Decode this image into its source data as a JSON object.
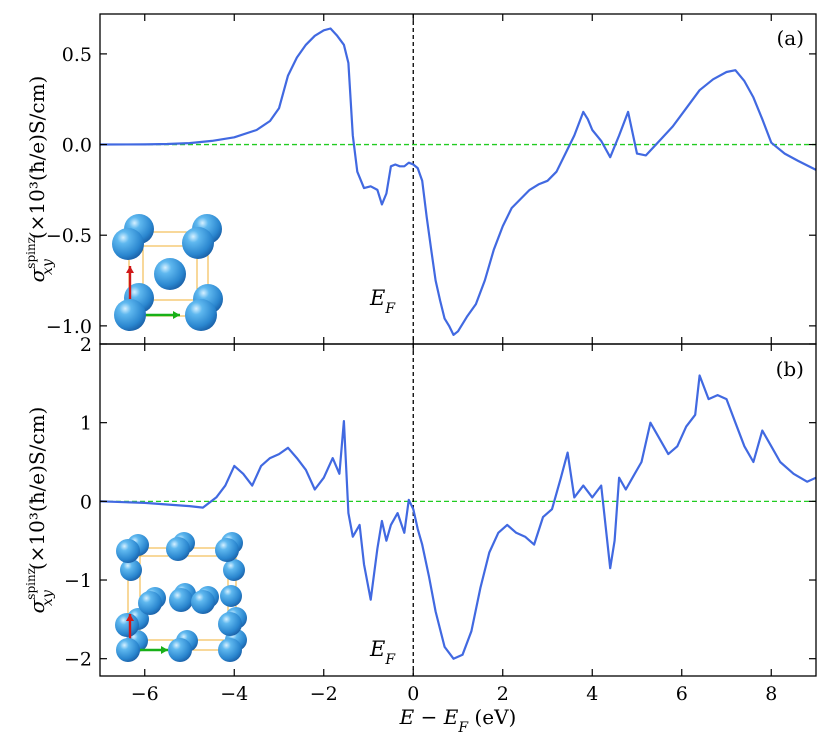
{
  "colors": {
    "curve": "#4169e1",
    "zero_line": "#22cc22",
    "fermi_line": "#000000",
    "atom": "#3a9fe0",
    "atom_highlight": "#bfe6ff",
    "cell_edge": "#f2b134",
    "arrow_up": "#d01818",
    "arrow_right": "#18b018"
  },
  "xlabel": "E − E_F (eV)",
  "xlabel_parts": {
    "a": "E",
    "minus": " − ",
    "b": "E",
    "sub": "F",
    "unit": " (eV)"
  },
  "ylabel_parts": {
    "sigma": "σ",
    "sup": "spinz",
    "sub": "xy",
    "unit": "(×10³(ħ/e)S/cm)"
  },
  "ef_label": {
    "main": "E",
    "sub": "F"
  },
  "chart_data": [
    {
      "type": "line",
      "panel": "(a)",
      "xlim": [
        -7,
        9
      ],
      "ylim": [
        -1.1,
        0.72
      ],
      "xticks": [
        -6,
        -4,
        -2,
        0,
        2,
        4,
        6,
        8
      ],
      "xtick_labels": [
        "−6",
        "−4",
        "−2",
        "0",
        "2",
        "4",
        "6",
        "8"
      ],
      "yticks": [
        0.5,
        0.0,
        -0.5,
        -1.0
      ],
      "ytick_labels": [
        "0.5",
        "0.0",
        "−0.5",
        "−1.0"
      ],
      "fermi_level": 0,
      "reference_line": 0,
      "inset": "bcc-cell",
      "x": [
        -7.0,
        -6.0,
        -5.5,
        -5.0,
        -4.5,
        -4.0,
        -3.5,
        -3.2,
        -3.0,
        -2.8,
        -2.6,
        -2.4,
        -2.2,
        -2.0,
        -1.85,
        -1.7,
        -1.55,
        -1.45,
        -1.35,
        -1.25,
        -1.1,
        -0.95,
        -0.8,
        -0.7,
        -0.6,
        -0.5,
        -0.4,
        -0.3,
        -0.2,
        -0.1,
        0.0,
        0.1,
        0.2,
        0.3,
        0.4,
        0.5,
        0.6,
        0.7,
        0.8,
        0.9,
        1.0,
        1.2,
        1.4,
        1.6,
        1.8,
        2.0,
        2.2,
        2.4,
        2.6,
        2.8,
        3.0,
        3.2,
        3.4,
        3.6,
        3.8,
        3.9,
        4.0,
        4.2,
        4.4,
        4.6,
        4.8,
        5.0,
        5.2,
        5.5,
        5.8,
        6.1,
        6.4,
        6.7,
        7.0,
        7.2,
        7.4,
        7.6,
        7.8,
        8.0,
        8.3,
        8.6,
        9.0
      ],
      "y": [
        0.0,
        0.001,
        0.003,
        0.008,
        0.02,
        0.04,
        0.08,
        0.13,
        0.2,
        0.38,
        0.48,
        0.55,
        0.6,
        0.63,
        0.64,
        0.6,
        0.55,
        0.45,
        0.05,
        -0.15,
        -0.24,
        -0.23,
        -0.25,
        -0.33,
        -0.27,
        -0.12,
        -0.11,
        -0.12,
        -0.12,
        -0.1,
        -0.11,
        -0.13,
        -0.2,
        -0.4,
        -0.58,
        -0.75,
        -0.86,
        -0.96,
        -1.0,
        -1.05,
        -1.03,
        -0.95,
        -0.88,
        -0.75,
        -0.58,
        -0.45,
        -0.35,
        -0.3,
        -0.25,
        -0.22,
        -0.2,
        -0.15,
        -0.05,
        0.05,
        0.18,
        0.14,
        0.08,
        0.02,
        -0.07,
        0.05,
        0.18,
        -0.05,
        -0.06,
        0.02,
        0.1,
        0.2,
        0.3,
        0.36,
        0.4,
        0.41,
        0.35,
        0.26,
        0.14,
        0.01,
        -0.05,
        -0.09,
        -0.14
      ]
    },
    {
      "type": "line",
      "panel": "(b)",
      "xlim": [
        -7,
        9
      ],
      "ylim": [
        -2.22,
        2.0
      ],
      "xticks": [
        -6,
        -4,
        -2,
        0,
        2,
        4,
        6,
        8
      ],
      "xtick_labels": [
        "−6",
        "−4",
        "−2",
        "0",
        "2",
        "4",
        "6",
        "8"
      ],
      "yticks": [
        2,
        1,
        0,
        -1,
        -2
      ],
      "ytick_labels": [
        "2",
        "1",
        "0",
        "−1",
        "−2"
      ],
      "fermi_level": 0,
      "reference_line": 0,
      "inset": "tetragonal-cell",
      "x": [
        -7.0,
        -6.0,
        -5.5,
        -5.0,
        -4.7,
        -4.4,
        -4.2,
        -4.0,
        -3.8,
        -3.6,
        -3.4,
        -3.2,
        -3.0,
        -2.8,
        -2.6,
        -2.4,
        -2.2,
        -2.0,
        -1.8,
        -1.65,
        -1.55,
        -1.45,
        -1.35,
        -1.2,
        -1.1,
        -0.95,
        -0.8,
        -0.7,
        -0.6,
        -0.5,
        -0.35,
        -0.2,
        -0.1,
        0.0,
        0.1,
        0.2,
        0.35,
        0.5,
        0.7,
        0.9,
        1.1,
        1.3,
        1.5,
        1.7,
        1.9,
        2.1,
        2.3,
        2.5,
        2.7,
        2.9,
        3.1,
        3.3,
        3.45,
        3.6,
        3.8,
        4.0,
        4.2,
        4.4,
        4.5,
        4.6,
        4.75,
        4.9,
        5.1,
        5.3,
        5.5,
        5.7,
        5.9,
        6.1,
        6.3,
        6.4,
        6.6,
        6.8,
        7.0,
        7.2,
        7.4,
        7.6,
        7.8,
        8.0,
        8.2,
        8.5,
        8.8,
        9.0
      ],
      "y": [
        0.0,
        -0.02,
        -0.04,
        -0.06,
        -0.08,
        0.05,
        0.2,
        0.45,
        0.35,
        0.2,
        0.45,
        0.55,
        0.6,
        0.68,
        0.55,
        0.4,
        0.15,
        0.3,
        0.55,
        0.35,
        1.02,
        -0.15,
        -0.45,
        -0.3,
        -0.8,
        -1.25,
        -0.6,
        -0.25,
        -0.5,
        -0.3,
        -0.15,
        -0.4,
        0.02,
        -0.1,
        -0.35,
        -0.55,
        -0.95,
        -1.4,
        -1.85,
        -2.0,
        -1.95,
        -1.65,
        -1.1,
        -0.65,
        -0.4,
        -0.3,
        -0.4,
        -0.45,
        -0.55,
        -0.2,
        -0.1,
        0.3,
        0.62,
        0.05,
        0.2,
        0.05,
        0.2,
        -0.85,
        -0.5,
        0.3,
        0.15,
        0.3,
        0.5,
        1.0,
        0.8,
        0.6,
        0.7,
        0.95,
        1.1,
        1.6,
        1.3,
        1.35,
        1.3,
        1.0,
        0.7,
        0.5,
        0.9,
        0.7,
        0.5,
        0.35,
        0.25,
        0.3
      ]
    }
  ]
}
